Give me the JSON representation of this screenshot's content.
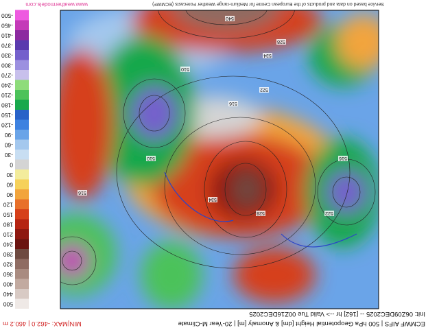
{
  "header": {
    "title": "ECMWF AIFS | 500 hPa Geopotential Height [dm] & Anomaly [m] | 20-Year M-Climate",
    "subtitle": "Init: 06Z09DEC2025 -- [162] hr --> Valid Tue 00Z16DEC2025",
    "minmax": "MIN|MAX: -462.0 | 460.2 m"
  },
  "footer": {
    "credit": "Service based on data and products of the European Centre for Medium-range Weather Forecasts (ECMWF)",
    "site": "www.weathermodels.com"
  },
  "colorbar": {
    "ticks": [
      500,
      440,
      400,
      360,
      320,
      280,
      240,
      210,
      180,
      150,
      120,
      90,
      60,
      30,
      0,
      -30,
      -60,
      -90,
      -120,
      -150,
      -180,
      -210,
      -240,
      -270,
      -300,
      -330,
      -370,
      -410,
      -450,
      -500
    ],
    "colors": [
      "#efe9e6",
      "#d8cac4",
      "#c2aaa0",
      "#a98b80",
      "#8f6c62",
      "#6e4a40",
      "#6a1410",
      "#8e1810",
      "#b52412",
      "#d6401a",
      "#e8702a",
      "#f2a43c",
      "#f6d15a",
      "#f3ec9c",
      "#d4d4d4",
      "#c8def2",
      "#a4c8ee",
      "#6aa4e8",
      "#3e82e0",
      "#2862c8",
      "#18a84c",
      "#4cc25a",
      "#8edc7a",
      "#c8c0ec",
      "#9c90e0",
      "#7460cc",
      "#5a3aae",
      "#8c2aa0",
      "#c43ab8",
      "#ee5ae0"
    ]
  },
  "contours": [
    "540",
    "534",
    "528",
    "522",
    "516",
    "510",
    "534",
    "528",
    "516",
    "522",
    "516",
    "510"
  ]
}
